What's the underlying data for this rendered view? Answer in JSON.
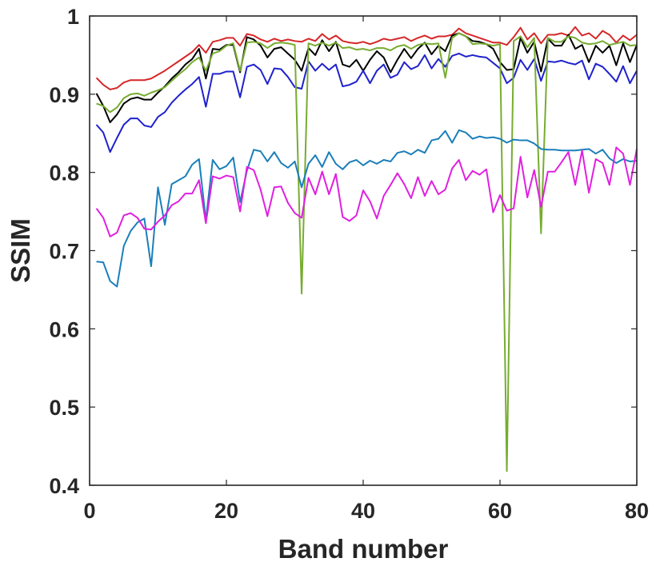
{
  "chart_data": {
    "type": "line",
    "title": "",
    "xlabel": "Band number",
    "ylabel": "SSIM",
    "xlim": [
      0,
      80
    ],
    "ylim": [
      0.4,
      1.0
    ],
    "xticks": [
      0,
      20,
      40,
      60,
      80
    ],
    "yticks": [
      0.4,
      0.5,
      0.6,
      0.7,
      0.8,
      0.9,
      1.0
    ],
    "ytick_labels": [
      "0.4",
      "0.5",
      "0.6",
      "0.7",
      "0.8",
      "0.9",
      "1"
    ],
    "grid": false,
    "legend": "none",
    "x": [
      1,
      2,
      3,
      4,
      5,
      6,
      7,
      8,
      9,
      10,
      11,
      12,
      13,
      14,
      15,
      16,
      17,
      18,
      19,
      20,
      21,
      22,
      23,
      24,
      25,
      26,
      27,
      28,
      29,
      30,
      31,
      32,
      33,
      34,
      35,
      36,
      37,
      38,
      39,
      40,
      41,
      42,
      43,
      44,
      45,
      46,
      47,
      48,
      49,
      50,
      51,
      52,
      53,
      54,
      55,
      56,
      57,
      58,
      59,
      60,
      61,
      62,
      63,
      64,
      65,
      66,
      67,
      68,
      69,
      70,
      71,
      72,
      73,
      74,
      75,
      76,
      77,
      78,
      79,
      80
    ],
    "series": [
      {
        "color": "#d62728",
        "values": [
          0.921,
          0.912,
          0.906,
          0.908,
          0.915,
          0.918,
          0.918,
          0.918,
          0.92,
          0.925,
          0.93,
          0.936,
          0.942,
          0.948,
          0.954,
          0.963,
          0.953,
          0.967,
          0.969,
          0.972,
          0.972,
          0.962,
          0.977,
          0.975,
          0.97,
          0.967,
          0.971,
          0.968,
          0.97,
          0.968,
          0.967,
          0.971,
          0.968,
          0.977,
          0.97,
          0.975,
          0.968,
          0.966,
          0.965,
          0.967,
          0.964,
          0.967,
          0.971,
          0.969,
          0.971,
          0.973,
          0.968,
          0.972,
          0.975,
          0.971,
          0.974,
          0.974,
          0.976,
          0.984,
          0.978,
          0.975,
          0.972,
          0.969,
          0.966,
          0.966,
          0.963,
          0.973,
          0.985,
          0.97,
          0.978,
          0.965,
          0.976,
          0.976,
          0.978,
          0.975,
          0.986,
          0.975,
          0.978,
          0.971,
          0.981,
          0.976,
          0.966,
          0.975,
          0.969,
          0.976
        ]
      },
      {
        "color": "#000000",
        "values": [
          0.901,
          0.885,
          0.864,
          0.874,
          0.888,
          0.894,
          0.896,
          0.893,
          0.893,
          0.902,
          0.91,
          0.92,
          0.928,
          0.938,
          0.945,
          0.958,
          0.92,
          0.958,
          0.957,
          0.963,
          0.963,
          0.928,
          0.973,
          0.97,
          0.962,
          0.947,
          0.958,
          0.96,
          0.952,
          0.944,
          0.93,
          0.959,
          0.95,
          0.969,
          0.955,
          0.967,
          0.938,
          0.935,
          0.944,
          0.93,
          0.944,
          0.955,
          0.947,
          0.928,
          0.944,
          0.958,
          0.946,
          0.958,
          0.966,
          0.951,
          0.962,
          0.955,
          0.975,
          0.978,
          0.974,
          0.968,
          0.967,
          0.964,
          0.958,
          0.941,
          0.931,
          0.932,
          0.972,
          0.953,
          0.967,
          0.929,
          0.971,
          0.962,
          0.962,
          0.976,
          0.958,
          0.963,
          0.941,
          0.962,
          0.953,
          0.962,
          0.937,
          0.965,
          0.941,
          0.963
        ]
      },
      {
        "color": "#1f22cc",
        "values": [
          0.861,
          0.851,
          0.826,
          0.844,
          0.861,
          0.869,
          0.869,
          0.86,
          0.858,
          0.871,
          0.877,
          0.889,
          0.898,
          0.906,
          0.913,
          0.922,
          0.884,
          0.926,
          0.926,
          0.929,
          0.929,
          0.896,
          0.935,
          0.938,
          0.931,
          0.913,
          0.933,
          0.932,
          0.922,
          0.909,
          0.907,
          0.942,
          0.93,
          0.939,
          0.931,
          0.938,
          0.91,
          0.912,
          0.916,
          0.93,
          0.914,
          0.93,
          0.938,
          0.921,
          0.925,
          0.941,
          0.932,
          0.936,
          0.95,
          0.933,
          0.945,
          0.935,
          0.949,
          0.952,
          0.948,
          0.95,
          0.948,
          0.947,
          0.94,
          0.933,
          0.914,
          0.921,
          0.944,
          0.931,
          0.945,
          0.917,
          0.942,
          0.941,
          0.943,
          0.94,
          0.938,
          0.943,
          0.919,
          0.939,
          0.935,
          0.926,
          0.916,
          0.936,
          0.914,
          0.93
        ]
      },
      {
        "color": "#77ac30",
        "values": [
          0.888,
          0.885,
          0.877,
          0.883,
          0.895,
          0.9,
          0.901,
          0.898,
          0.902,
          0.905,
          0.909,
          0.917,
          0.925,
          0.932,
          0.941,
          0.947,
          0.93,
          0.952,
          0.955,
          0.962,
          0.965,
          0.93,
          0.966,
          0.967,
          0.965,
          0.959,
          0.965,
          0.966,
          0.965,
          0.963,
          0.645,
          0.965,
          0.962,
          0.966,
          0.962,
          0.966,
          0.959,
          0.96,
          0.957,
          0.958,
          0.956,
          0.959,
          0.959,
          0.956,
          0.961,
          0.963,
          0.958,
          0.963,
          0.965,
          0.964,
          0.965,
          0.921,
          0.972,
          0.978,
          0.974,
          0.964,
          0.965,
          0.964,
          0.962,
          0.964,
          0.418,
          0.968,
          0.974,
          0.96,
          0.972,
          0.722,
          0.972,
          0.967,
          0.967,
          0.974,
          0.972,
          0.966,
          0.964,
          0.965,
          0.968,
          0.963,
          0.965,
          0.967,
          0.962,
          0.963
        ]
      },
      {
        "color": "#1a7fba",
        "values": [
          0.686,
          0.685,
          0.661,
          0.654,
          0.706,
          0.725,
          0.736,
          0.741,
          0.68,
          0.781,
          0.733,
          0.785,
          0.79,
          0.795,
          0.81,
          0.817,
          0.739,
          0.816,
          0.804,
          0.808,
          0.819,
          0.762,
          0.802,
          0.829,
          0.827,
          0.814,
          0.826,
          0.812,
          0.806,
          0.814,
          0.781,
          0.811,
          0.822,
          0.807,
          0.826,
          0.811,
          0.804,
          0.813,
          0.816,
          0.809,
          0.815,
          0.811,
          0.816,
          0.814,
          0.825,
          0.827,
          0.823,
          0.829,
          0.825,
          0.841,
          0.843,
          0.853,
          0.838,
          0.854,
          0.851,
          0.843,
          0.846,
          0.844,
          0.845,
          0.843,
          0.838,
          0.842,
          0.841,
          0.841,
          0.837,
          0.83,
          0.829,
          0.829,
          0.828,
          0.828,
          0.828,
          0.829,
          0.83,
          0.824,
          0.829,
          0.818,
          0.812,
          0.817,
          0.814,
          0.815
        ]
      },
      {
        "color": "#e020e0",
        "values": [
          0.754,
          0.742,
          0.718,
          0.723,
          0.745,
          0.748,
          0.742,
          0.728,
          0.727,
          0.737,
          0.745,
          0.758,
          0.763,
          0.773,
          0.773,
          0.79,
          0.735,
          0.795,
          0.792,
          0.796,
          0.794,
          0.75,
          0.807,
          0.803,
          0.778,
          0.744,
          0.781,
          0.782,
          0.761,
          0.748,
          0.742,
          0.793,
          0.772,
          0.801,
          0.772,
          0.798,
          0.743,
          0.738,
          0.745,
          0.777,
          0.763,
          0.741,
          0.77,
          0.784,
          0.799,
          0.785,
          0.767,
          0.794,
          0.77,
          0.789,
          0.772,
          0.778,
          0.805,
          0.816,
          0.79,
          0.802,
          0.797,
          0.804,
          0.749,
          0.771,
          0.751,
          0.754,
          0.82,
          0.768,
          0.803,
          0.756,
          0.801,
          0.801,
          0.813,
          0.826,
          0.784,
          0.828,
          0.774,
          0.817,
          0.812,
          0.784,
          0.832,
          0.824,
          0.784,
          0.83
        ]
      }
    ]
  }
}
